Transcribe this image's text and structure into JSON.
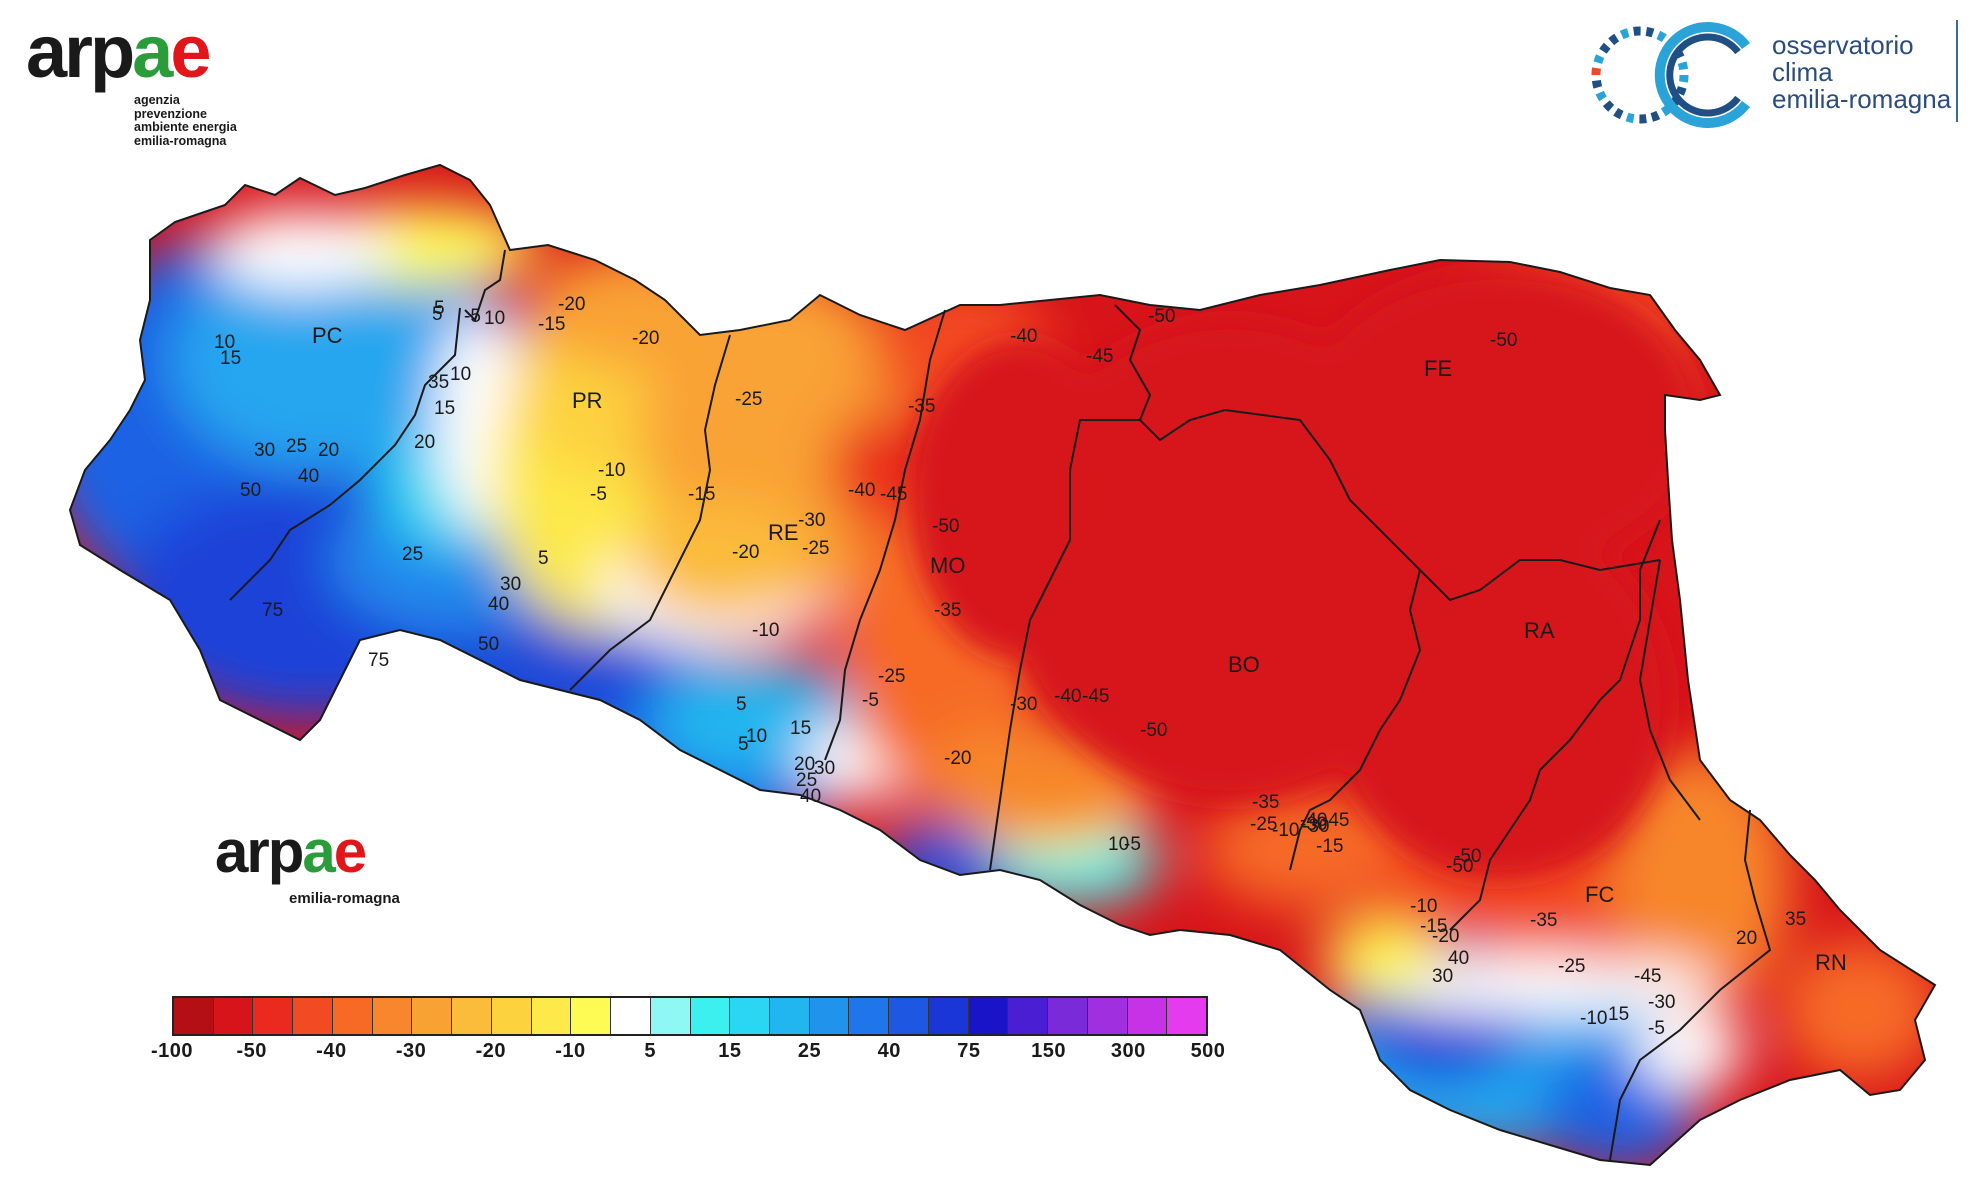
{
  "header": {
    "logo_word_parts": [
      "ar",
      "p",
      "a",
      "e"
    ],
    "logo_sub_lines": [
      "agenzia",
      "prevenzione",
      "ambiente energia",
      "emilia-romagna"
    ]
  },
  "observatory": {
    "lines": [
      "osservatorio",
      "clima",
      "emilia-romagna"
    ]
  },
  "inner_logo": {
    "word_parts": [
      "ar",
      "p",
      "a",
      "e"
    ],
    "sub": "emilia-romagna"
  },
  "provinces": [
    {
      "code": "PC"
    },
    {
      "code": "PR"
    },
    {
      "code": "RE"
    },
    {
      "code": "MO"
    },
    {
      "code": "BO"
    },
    {
      "code": "FE"
    },
    {
      "code": "RA"
    },
    {
      "code": "FC"
    },
    {
      "code": "RN"
    }
  ],
  "isolines": [
    "5",
    "-5",
    "10",
    "-20",
    "-15",
    "-20",
    "-40",
    "-50",
    "-45",
    "-50",
    "-25",
    "-35",
    "-10",
    "-5",
    "-15",
    "-30",
    "-40",
    "-45",
    "-50",
    "-25",
    "-20",
    "-35",
    "-10",
    "-25",
    "-5",
    "-30",
    "-40",
    "-45",
    "-50",
    "-20",
    "-35",
    "-25",
    "-30",
    "-40",
    "-45",
    "-50",
    "-20",
    "-35",
    "-25",
    "-30",
    "-45",
    "-10",
    "15",
    "-5",
    "-10",
    "-15",
    "-50",
    "-30",
    "10",
    "15",
    "20",
    "25",
    "30",
    "35",
    "40",
    "50",
    "75",
    "5",
    "10",
    "15",
    "20",
    "25",
    "30",
    "40",
    "50",
    "75",
    "5",
    "5",
    "10",
    "15",
    "20",
    "25",
    "30",
    "40",
    "5",
    "10",
    "35",
    "-5",
    "-10",
    "-15",
    "20",
    "30",
    "40"
  ],
  "legend": {
    "colors": [
      "#b30f14",
      "#d7141a",
      "#ea2a1f",
      "#f24a22",
      "#f66a25",
      "#f7862c",
      "#f9a234",
      "#fbbb3b",
      "#fdd23f",
      "#fde94a",
      "#fffb55",
      "#ffffff",
      "#8ff7f4",
      "#3cf0ef",
      "#2ad6f2",
      "#22b6f0",
      "#2094ec",
      "#1f76ea",
      "#1e58e2",
      "#1a36d6",
      "#1a14c8",
      "#4a1ed2",
      "#7a2ad8",
      "#a02fe0",
      "#c632e6",
      "#e33bed"
    ],
    "ticks": [
      "-100",
      "-50",
      "-40",
      "-30",
      "-20",
      "-10",
      "5",
      "15",
      "25",
      "40",
      "75",
      "150",
      "300",
      "500"
    ]
  }
}
